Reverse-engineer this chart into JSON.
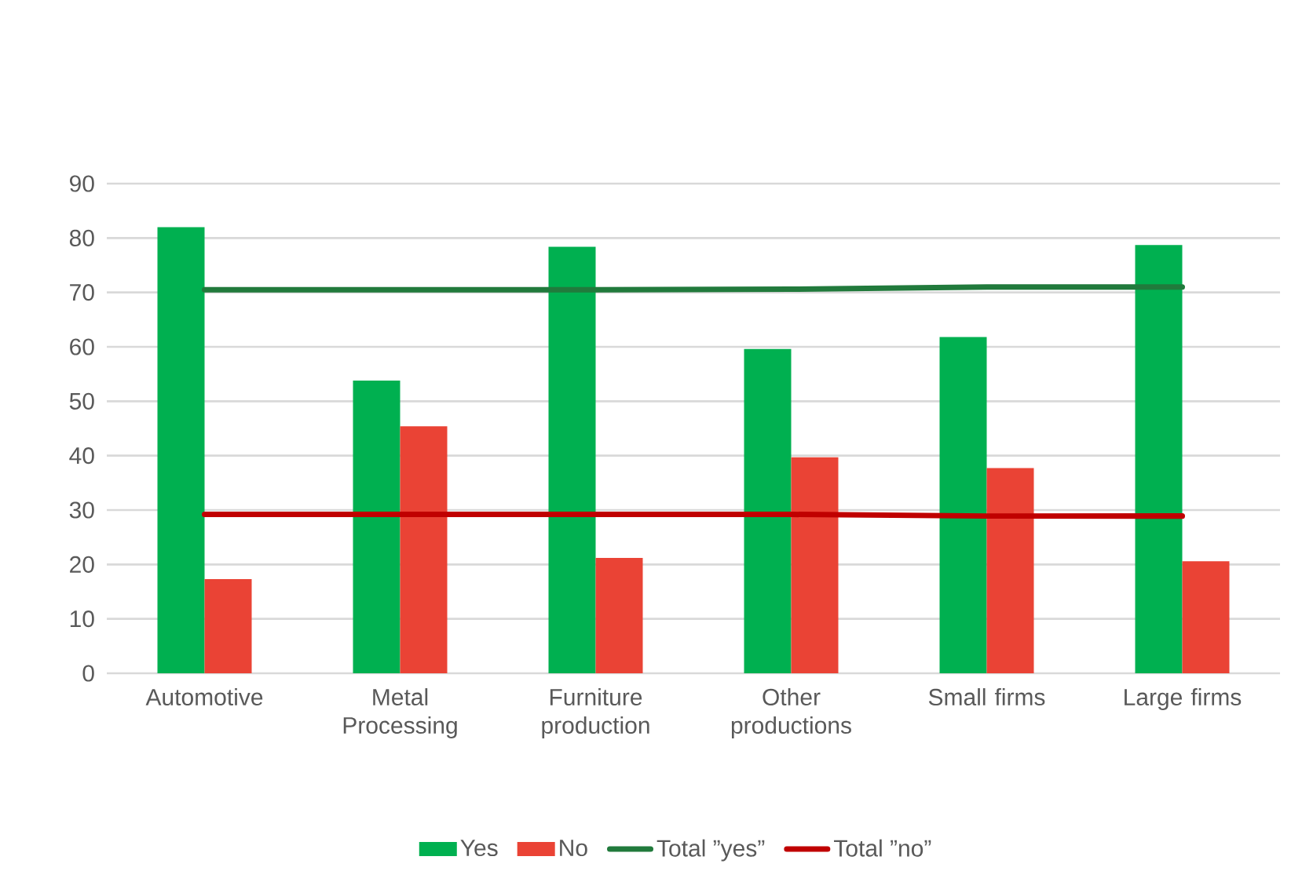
{
  "chart_data": {
    "type": "bar",
    "categories": [
      "Automotive",
      "Metal Processing",
      "Furniture production",
      "Other productions",
      "Small firms",
      "Large firms"
    ],
    "series": [
      {
        "name": "Yes",
        "color": "#00b050",
        "values": [
          82.0,
          53.8,
          78.4,
          59.6,
          61.8,
          78.7
        ]
      },
      {
        "name": "No",
        "color": "#ea4335",
        "values": [
          17.3,
          45.4,
          21.2,
          39.7,
          37.7,
          20.6
        ]
      },
      {
        "name": "Total ”yes”",
        "type": "line",
        "color": "#217a3c",
        "values": [
          70.5,
          70.5,
          70.5,
          70.6,
          71.0,
          71.0
        ]
      },
      {
        "name": "Total ”no”",
        "type": "line",
        "color": "#c00000",
        "values": [
          29.2,
          29.2,
          29.2,
          29.2,
          28.9,
          28.9
        ]
      }
    ],
    "ylim": [
      0,
      90
    ],
    "yticks": [
      0,
      10,
      20,
      30,
      40,
      50,
      60,
      70,
      80,
      90
    ],
    "grid": "y",
    "legend": "bottom",
    "marker": "none",
    "line_style": "solid"
  }
}
